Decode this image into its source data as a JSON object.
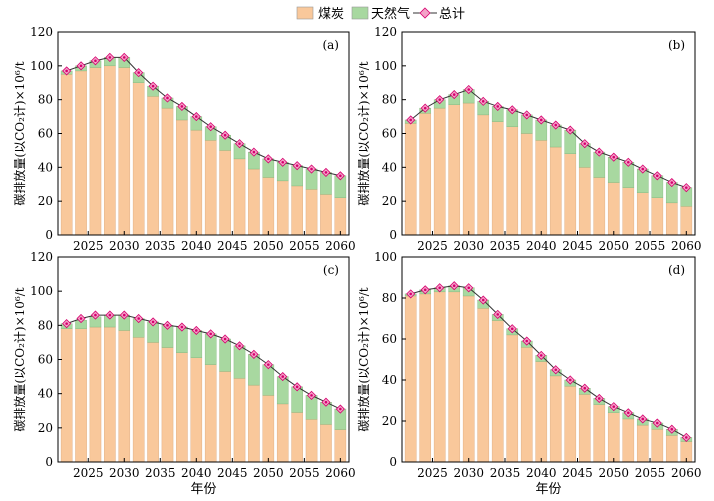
{
  "legend": {
    "coal_label": "煤炭",
    "gas_label": "天然气",
    "total_label": "总计"
  },
  "colors": {
    "coal": "#f9c89b",
    "gas": "#a8d8a0",
    "total_line": "#333333",
    "total_marker_fill": "#f4a3c8",
    "total_marker_center": "#d6006e"
  },
  "chart_data": [
    {
      "type": "bar",
      "panel_label": "(a)",
      "xlabel": "",
      "ylabel": "碳排放量(以CO₂计)×10⁶/t",
      "ylim": [
        0,
        120
      ],
      "yticks": [
        0,
        20,
        40,
        60,
        80,
        100,
        120
      ],
      "xticks": [
        2025,
        2030,
        2035,
        2040,
        2045,
        2050,
        2055,
        2060
      ],
      "x": [
        2022,
        2024,
        2026,
        2028,
        2030,
        2032,
        2034,
        2036,
        2038,
        2040,
        2042,
        2044,
        2046,
        2048,
        2050,
        2052,
        2054,
        2056,
        2058,
        2060
      ],
      "series": [
        {
          "name": "煤炭",
          "values": [
            95,
            97,
            99,
            100,
            99,
            90,
            82,
            75,
            68,
            62,
            56,
            50,
            45,
            39,
            34,
            32,
            29,
            27,
            24,
            22
          ]
        },
        {
          "name": "天然气",
          "values": [
            2,
            3,
            4,
            5,
            6,
            6,
            6,
            6,
            8,
            8,
            8,
            9,
            9,
            10,
            11,
            11,
            12,
            12,
            13,
            13
          ]
        },
        {
          "name": "总计",
          "values": [
            97,
            100,
            103,
            105,
            105,
            96,
            88,
            81,
            76,
            70,
            64,
            59,
            54,
            49,
            45,
            43,
            41,
            39,
            37,
            35
          ]
        }
      ]
    },
    {
      "type": "bar",
      "panel_label": "(b)",
      "xlabel": "",
      "ylabel": "碳排放量(以CO₂计)×10⁶/t",
      "ylim": [
        0,
        120
      ],
      "yticks": [
        0,
        20,
        40,
        60,
        80,
        100,
        120
      ],
      "xticks": [
        2025,
        2030,
        2035,
        2040,
        2045,
        2050,
        2055,
        2060
      ],
      "x": [
        2022,
        2024,
        2026,
        2028,
        2030,
        2032,
        2034,
        2036,
        2038,
        2040,
        2042,
        2044,
        2046,
        2048,
        2050,
        2052,
        2054,
        2056,
        2058,
        2060
      ],
      "series": [
        {
          "name": "煤炭",
          "values": [
            66,
            72,
            75,
            77,
            78,
            71,
            67,
            64,
            60,
            56,
            52,
            48,
            40,
            34,
            31,
            28,
            25,
            22,
            19,
            17
          ]
        },
        {
          "name": "天然气",
          "values": [
            2,
            3,
            5,
            6,
            8,
            8,
            9,
            10,
            11,
            12,
            13,
            14,
            14,
            15,
            15,
            15,
            14,
            13,
            12,
            11
          ]
        },
        {
          "name": "总计",
          "values": [
            68,
            75,
            80,
            83,
            86,
            79,
            76,
            74,
            71,
            68,
            65,
            62,
            54,
            49,
            46,
            43,
            39,
            35,
            31,
            28
          ]
        }
      ]
    },
    {
      "type": "bar",
      "panel_label": "(c)",
      "xlabel": "年份",
      "ylabel": "碳排放量(以CO₂计)×10⁶/t",
      "ylim": [
        0,
        120
      ],
      "yticks": [
        0,
        20,
        40,
        60,
        80,
        100,
        120
      ],
      "xticks": [
        2025,
        2030,
        2035,
        2040,
        2045,
        2050,
        2055,
        2060
      ],
      "x": [
        2022,
        2024,
        2026,
        2028,
        2030,
        2032,
        2034,
        2036,
        2038,
        2040,
        2042,
        2044,
        2046,
        2048,
        2050,
        2052,
        2054,
        2056,
        2058,
        2060
      ],
      "series": [
        {
          "name": "煤炭",
          "values": [
            78,
            78,
            79,
            79,
            77,
            73,
            70,
            67,
            64,
            61,
            57,
            53,
            49,
            45,
            39,
            34,
            29,
            25,
            22,
            19
          ]
        },
        {
          "name": "天然气",
          "values": [
            3,
            5,
            6,
            7,
            9,
            11,
            12,
            13,
            15,
            16,
            18,
            19,
            19,
            18,
            18,
            16,
            15,
            14,
            13,
            12
          ]
        },
        {
          "name": "总计",
          "values": [
            81,
            84,
            86,
            86,
            86,
            84,
            82,
            80,
            79,
            77,
            75,
            72,
            68,
            63,
            57,
            50,
            44,
            39,
            35,
            31
          ]
        }
      ]
    },
    {
      "type": "bar",
      "panel_label": "(d)",
      "xlabel": "年份",
      "ylabel": "碳排放量(以CO₂计)×10⁶/t",
      "ylim": [
        0,
        100
      ],
      "yticks": [
        0,
        20,
        40,
        60,
        80,
        100
      ],
      "xticks": [
        2025,
        2030,
        2035,
        2040,
        2045,
        2050,
        2055,
        2060
      ],
      "x": [
        2022,
        2024,
        2026,
        2028,
        2030,
        2032,
        2034,
        2036,
        2038,
        2040,
        2042,
        2044,
        2046,
        2048,
        2050,
        2052,
        2054,
        2056,
        2058,
        2060
      ],
      "series": [
        {
          "name": "煤炭",
          "values": [
            81,
            82,
            83,
            83,
            81,
            75,
            69,
            62,
            56,
            49,
            42,
            37,
            33,
            28,
            24,
            21,
            18,
            16,
            13,
            10
          ]
        },
        {
          "name": "天然气",
          "values": [
            1,
            2,
            2,
            3,
            4,
            4,
            3,
            3,
            3,
            3,
            3,
            3,
            3,
            3,
            3,
            3,
            3,
            3,
            3,
            2
          ]
        },
        {
          "name": "总计",
          "values": [
            82,
            84,
            85,
            86,
            85,
            79,
            72,
            65,
            59,
            52,
            45,
            40,
            36,
            31,
            27,
            24,
            21,
            19,
            16,
            12
          ]
        }
      ]
    }
  ]
}
